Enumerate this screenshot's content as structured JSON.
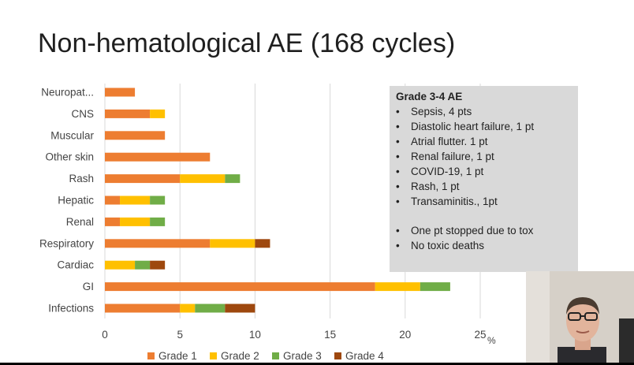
{
  "slide": {
    "title": "Non-hematological AE (168 cycles)"
  },
  "chart_data": {
    "type": "bar",
    "orientation": "horizontal",
    "stacked": true,
    "categories": [
      "Neuropat...",
      "CNS",
      "Muscular",
      "Other skin",
      "Rash",
      "Hepatic",
      "Renal",
      "Respiratory",
      "Cardiac",
      "GI",
      "Infections"
    ],
    "series": [
      {
        "name": "Grade 1",
        "color": "#ED7D31",
        "values": [
          2,
          3,
          4,
          7,
          5,
          1,
          1,
          7,
          0,
          18,
          5
        ]
      },
      {
        "name": "Grade 2",
        "color": "#FFC000",
        "values": [
          0,
          1,
          0,
          0,
          3,
          2,
          2,
          3,
          2,
          3,
          1
        ]
      },
      {
        "name": "Grade 3",
        "color": "#70AD47",
        "values": [
          0,
          0,
          0,
          0,
          1,
          1,
          1,
          0,
          1,
          2,
          2
        ]
      },
      {
        "name": "Grade 4",
        "color": "#9E480E",
        "values": [
          0,
          0,
          0,
          0,
          0,
          0,
          0,
          1,
          1,
          0,
          2
        ]
      }
    ],
    "xlim": [
      0,
      25
    ],
    "xticks": [
      "0",
      "5",
      "10",
      "15",
      "20",
      "25"
    ],
    "xunit": "%",
    "gridlines": true,
    "legend": "bottom"
  },
  "notes": {
    "title": "Grade 3-4 AE",
    "items": [
      "Sepsis, 4 pts",
      "Diastolic heart failure, 1 pt",
      "Atrial flutter. 1 pt",
      "Renal failure, 1 pt",
      "COVID-19, 1 pt",
      "Rash, 1 pt",
      "Transaminitis., 1pt"
    ],
    "items2": [
      "One pt stopped due to tox",
      "No toxic deaths"
    ]
  }
}
